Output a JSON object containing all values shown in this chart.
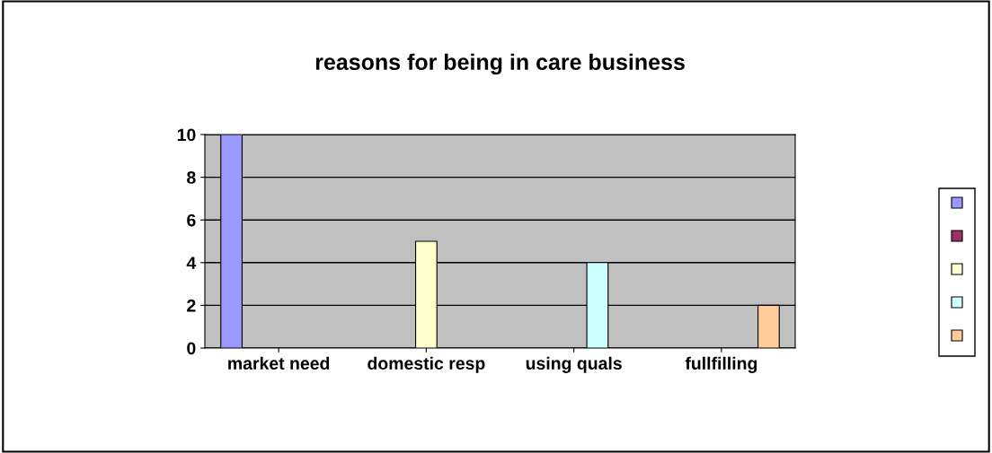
{
  "chart_data": {
    "type": "bar",
    "title": "reasons for being in care business",
    "categories": [
      "market need",
      "domestic resp",
      "using quals",
      "fullfilling"
    ],
    "series": [
      {
        "color": "#9999ff",
        "values": [
          10,
          null,
          null,
          null
        ]
      },
      {
        "color": "#993366",
        "values": [
          null,
          null,
          null,
          null
        ]
      },
      {
        "color": "#ffffcc",
        "values": [
          null,
          5,
          null,
          null
        ]
      },
      {
        "color": "#ccffff",
        "values": [
          null,
          null,
          4,
          null
        ]
      },
      {
        "color": "#ffcc99",
        "values": [
          null,
          null,
          null,
          2
        ]
      }
    ],
    "ylim": [
      0,
      10
    ],
    "yticks": [
      0,
      2,
      4,
      6,
      8,
      10
    ],
    "grid": "y"
  }
}
